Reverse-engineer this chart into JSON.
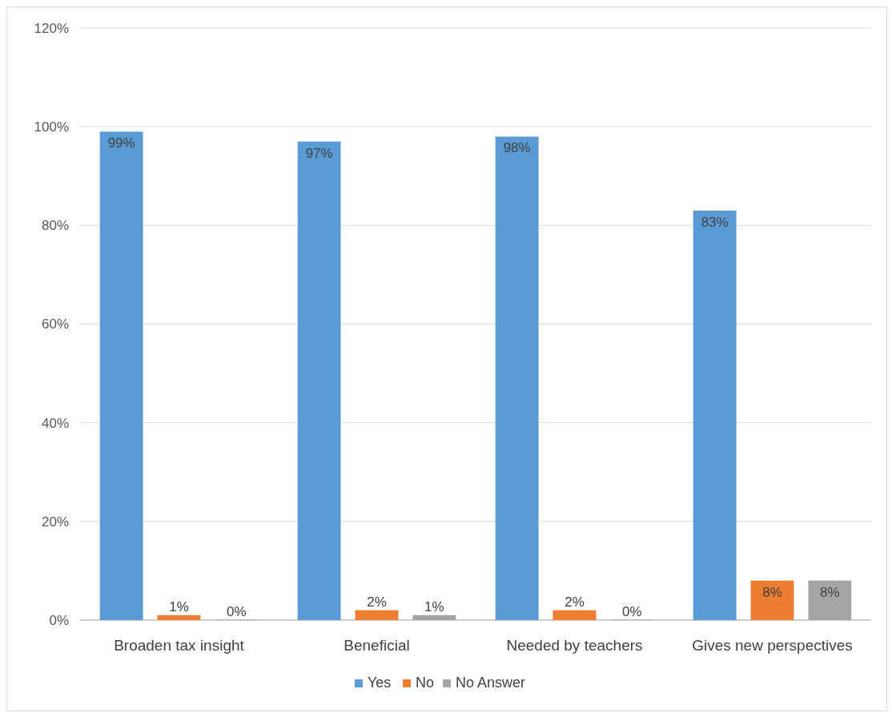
{
  "chart_data": {
    "type": "bar",
    "categories": [
      "Broaden tax insight",
      "Beneficial",
      "Needed by teachers",
      "Gives new perspectives"
    ],
    "series": [
      {
        "name": "Yes",
        "color": "#5b9bd5",
        "values": [
          99,
          97,
          98,
          83
        ],
        "value_labels": [
          "99%",
          "97%",
          "98%",
          "83%"
        ]
      },
      {
        "name": "No",
        "color": "#ed7d31",
        "values": [
          1,
          2,
          2,
          8
        ],
        "value_labels": [
          "1%",
          "2%",
          "2%",
          "8%"
        ]
      },
      {
        "name": "No Answer",
        "color": "#a5a5a5",
        "values": [
          0,
          1,
          0,
          8
        ],
        "value_labels": [
          "0%",
          "1%",
          "0%",
          "8%"
        ]
      }
    ],
    "ylim": [
      0,
      120
    ],
    "yticks": [
      {
        "value": 0,
        "label": "0%"
      },
      {
        "value": 20,
        "label": "20%"
      },
      {
        "value": 40,
        "label": "40%"
      },
      {
        "value": 60,
        "label": "60%"
      },
      {
        "value": 80,
        "label": "80%"
      },
      {
        "value": 100,
        "label": "100%"
      },
      {
        "value": 120,
        "label": "120%"
      }
    ],
    "grid": "y",
    "legend": "bottom"
  }
}
